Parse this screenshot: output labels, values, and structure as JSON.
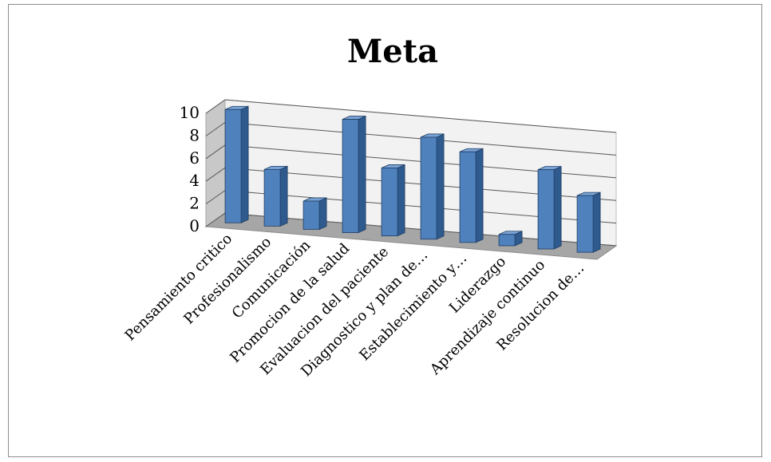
{
  "chart_data": {
    "type": "bar",
    "title": "Meta",
    "categories": [
      "Pensamiento critico",
      "Profesionalismo",
      "Comunicación",
      "Promocion de la salud",
      "Evaluacion del paciente",
      "Diagnostico y plan de…",
      "Establecimiento y…",
      "Liderazgo",
      "Aprendizaje continuo",
      "Resolucion de…"
    ],
    "values": [
      10,
      5,
      2.5,
      10,
      6,
      9,
      8,
      1,
      7,
      5
    ],
    "ylim": [
      0,
      10
    ],
    "yticks": [
      "0",
      "2",
      "4",
      "6",
      "8",
      "10"
    ],
    "grid": true,
    "legend": "none",
    "bar_color": "#4f81bd",
    "bar_side_color": "#2f5a8e",
    "bar_top_color": "#7aa3d6"
  }
}
